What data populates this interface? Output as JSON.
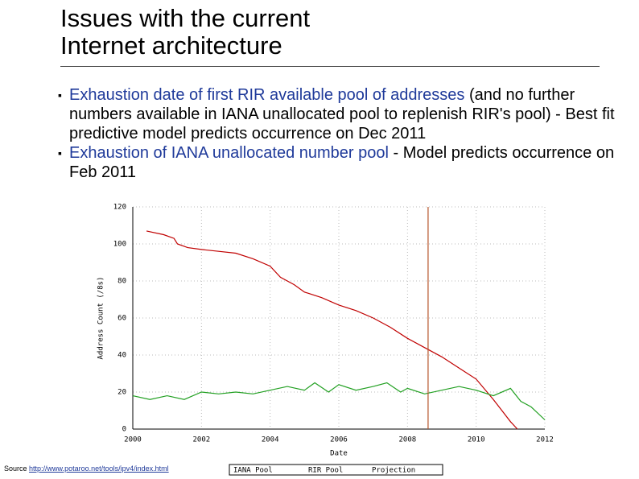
{
  "slide": {
    "title_lines": [
      "Issues with the current",
      "Internet architecture"
    ],
    "bullets": [
      {
        "highlight": "Exhaustion date of first RIR available pool of addresses",
        "text": "(and no further numbers available in IANA unallocated pool to replenish RIR's pool) - Best fit predictive model predicts occurrence on Dec 2011"
      },
      {
        "highlight": "Exhaustion of IANA unallocated number pool",
        "text": "- Model predicts occurrence on Feb 2011"
      }
    ],
    "source_label": "Source",
    "source_url": "http://www.potaroo.net/tools/ipv4/index.html"
  },
  "chart_data": {
    "type": "line",
    "x_label": "Date",
    "y_label": "Address Count (/8s)",
    "xlim": [
      2000,
      2012
    ],
    "xticks": [
      2000,
      2002,
      2004,
      2006,
      2008,
      2010,
      2012
    ],
    "ylim": [
      0,
      120
    ],
    "yticks": [
      0,
      20,
      40,
      60,
      80,
      100,
      120
    ],
    "grid": true,
    "series": [
      {
        "name": "IANA Pool",
        "color": "#c00000",
        "x": [
          2000.4,
          2000.9,
          2001.2,
          2001.3,
          2001.6,
          2002.0,
          2002.5,
          2003.0,
          2003.5,
          2004.0,
          2004.3,
          2004.7,
          2005.0,
          2005.5,
          2006.0,
          2006.5,
          2007.0,
          2007.5,
          2008.0,
          2008.5,
          2009.0,
          2009.5,
          2010.0,
          2010.5,
          2011.0,
          2011.2
        ],
        "values": [
          107,
          105,
          103,
          100,
          98,
          97,
          96,
          95,
          92,
          88,
          82,
          78,
          74,
          71,
          67,
          64,
          60,
          55,
          49,
          44,
          39,
          33,
          27,
          16,
          4,
          0
        ]
      },
      {
        "name": "RIR Pool",
        "color": "#22a022",
        "x": [
          2000.0,
          2000.5,
          2001.0,
          2001.5,
          2002.0,
          2002.5,
          2003.0,
          2003.5,
          2004.0,
          2004.5,
          2005.0,
          2005.3,
          2005.7,
          2006.0,
          2006.5,
          2007.0,
          2007.4,
          2007.8,
          2008.0,
          2008.5,
          2009.0,
          2009.5,
          2010.0,
          2010.5,
          2011.0,
          2011.3,
          2011.6,
          2012.0
        ],
        "values": [
          18,
          16,
          18,
          16,
          20,
          19,
          20,
          19,
          21,
          23,
          21,
          25,
          20,
          24,
          21,
          23,
          25,
          20,
          22,
          19,
          21,
          23,
          21,
          18,
          22,
          15,
          12,
          5
        ]
      }
    ],
    "projection_label": "Projection",
    "projection_x": 2008.6,
    "projection_color": "#b5532a"
  }
}
